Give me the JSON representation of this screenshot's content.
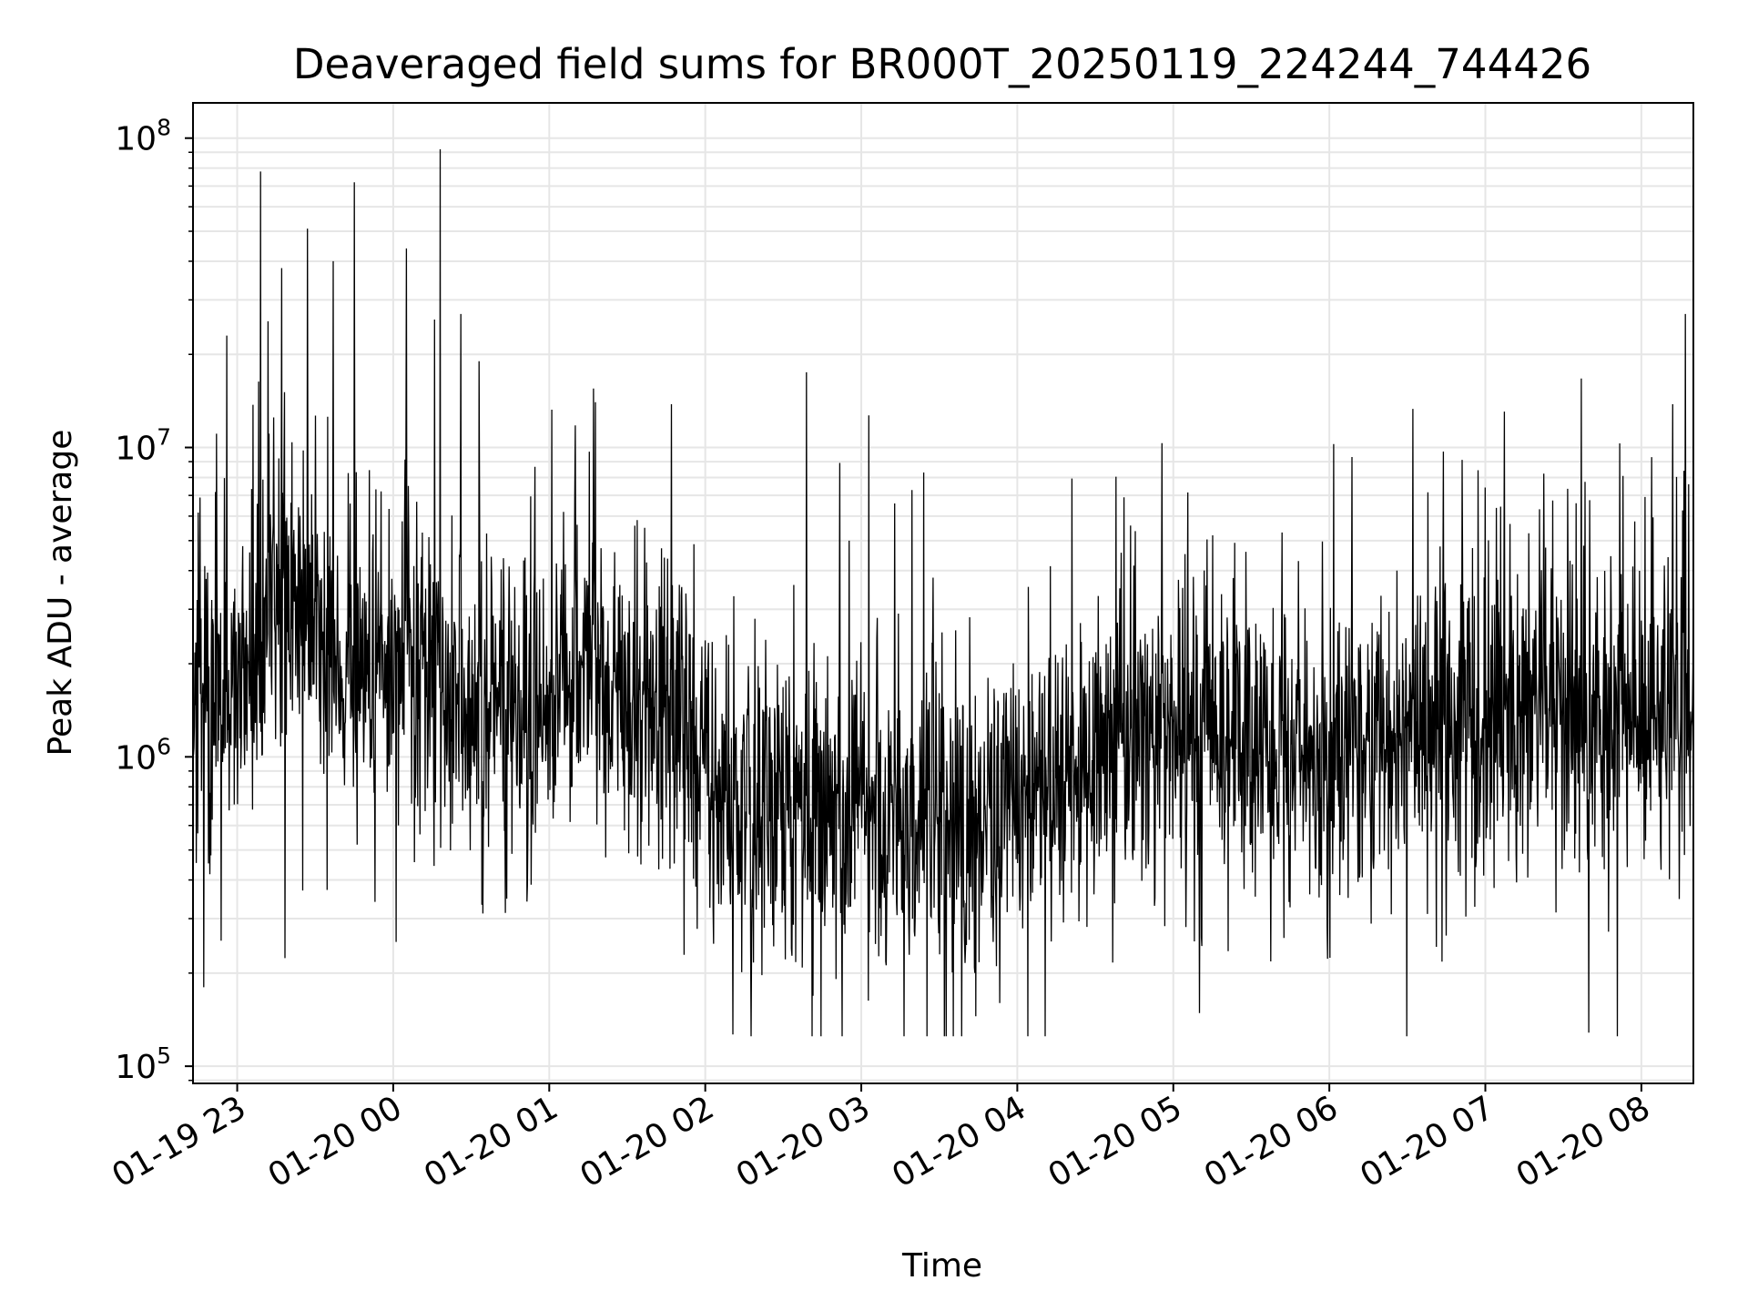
{
  "chart_data": {
    "type": "line",
    "title": "Deaveraged field sums for BR000T_20250119_224244_744426",
    "xlabel": "Time",
    "ylabel": "Peak ADU - average",
    "yscale": "log",
    "ylim": [
      88000,
      130000000
    ],
    "xlim": [
      "2025-01-19 22:43",
      "2025-01-20 08:20"
    ],
    "grid": true,
    "line_color": "#000000",
    "grid_color": "#e6e6e6",
    "x_ticks": [
      {
        "label": "01-19 23",
        "time": "2025-01-19 23:00"
      },
      {
        "label": "01-20 00",
        "time": "2025-01-20 00:00"
      },
      {
        "label": "01-20 01",
        "time": "2025-01-20 01:00"
      },
      {
        "label": "01-20 02",
        "time": "2025-01-20 02:00"
      },
      {
        "label": "01-20 03",
        "time": "2025-01-20 03:00"
      },
      {
        "label": "01-20 04",
        "time": "2025-01-20 04:00"
      },
      {
        "label": "01-20 05",
        "time": "2025-01-20 05:00"
      },
      {
        "label": "01-20 06",
        "time": "2025-01-20 06:00"
      },
      {
        "label": "01-20 07",
        "time": "2025-01-20 07:00"
      },
      {
        "label": "01-20 08",
        "time": "2025-01-20 08:00"
      }
    ],
    "y_ticks": [
      {
        "base": "10",
        "exp": "5",
        "value": 100000
      },
      {
        "base": "10",
        "exp": "6",
        "value": 1000000
      },
      {
        "base": "10",
        "exp": "7",
        "value": 10000000
      },
      {
        "base": "10",
        "exp": "8",
        "value": 100000000
      }
    ],
    "series": [
      {
        "x": [
          "2025-01-19 22:43",
          "2025-01-19 22:52",
          "2025-01-19 23:00",
          "2025-01-19 23:07",
          "2025-01-19 23:15",
          "2025-01-19 23:22",
          "2025-01-19 23:30",
          "2025-01-19 23:37",
          "2025-01-19 23:45",
          "2025-01-19 23:52",
          "2025-01-20 00:00",
          "2025-01-20 00:07",
          "2025-01-20 00:15",
          "2025-01-20 00:22",
          "2025-01-20 00:30",
          "2025-01-20 00:37",
          "2025-01-20 00:45",
          "2025-01-20 00:52",
          "2025-01-20 01:00",
          "2025-01-20 01:07",
          "2025-01-20 01:15",
          "2025-01-20 01:22",
          "2025-01-20 01:30",
          "2025-01-20 01:37",
          "2025-01-20 01:45",
          "2025-01-20 01:52",
          "2025-01-20 02:00",
          "2025-01-20 02:07",
          "2025-01-20 02:15",
          "2025-01-20 02:22",
          "2025-01-20 02:30",
          "2025-01-20 02:37",
          "2025-01-20 02:45",
          "2025-01-20 02:52",
          "2025-01-20 03:00",
          "2025-01-20 03:07",
          "2025-01-20 03:15",
          "2025-01-20 03:22",
          "2025-01-20 03:30",
          "2025-01-20 03:37",
          "2025-01-20 03:45",
          "2025-01-20 03:52",
          "2025-01-20 04:00",
          "2025-01-20 04:07",
          "2025-01-20 04:15",
          "2025-01-20 04:22",
          "2025-01-20 04:30",
          "2025-01-20 04:37",
          "2025-01-20 04:45",
          "2025-01-20 04:52",
          "2025-01-20 05:00",
          "2025-01-20 05:07",
          "2025-01-20 05:15",
          "2025-01-20 05:22",
          "2025-01-20 05:30",
          "2025-01-20 05:37",
          "2025-01-20 05:45",
          "2025-01-20 05:52",
          "2025-01-20 06:00",
          "2025-01-20 06:07",
          "2025-01-20 06:15",
          "2025-01-20 06:22",
          "2025-01-20 06:30",
          "2025-01-20 06:37",
          "2025-01-20 06:45",
          "2025-01-20 06:52",
          "2025-01-20 07:00",
          "2025-01-20 07:07",
          "2025-01-20 07:15",
          "2025-01-20 07:22",
          "2025-01-20 07:30",
          "2025-01-20 07:37",
          "2025-01-20 07:45",
          "2025-01-20 07:52",
          "2025-01-20 08:00",
          "2025-01-20 08:07",
          "2025-01-20 08:14",
          "2025-01-20 08:20"
        ],
        "baseline": [
          1500000,
          1600000,
          1700000,
          2200000,
          3000000,
          3200000,
          2500000,
          1800000,
          1900000,
          2200000,
          2300000,
          2200000,
          1800000,
          1500000,
          1300000,
          1500000,
          1400000,
          1200000,
          1600000,
          1700000,
          1700000,
          1600000,
          1500000,
          1400000,
          1400000,
          1300000,
          1000000,
          700000,
          600000,
          650000,
          800000,
          700000,
          650000,
          600000,
          800000,
          650000,
          550000,
          600000,
          650000,
          550000,
          520000,
          550000,
          750000,
          800000,
          900000,
          1000000,
          1000000,
          1050000,
          1100000,
          1150000,
          1150000,
          1150000,
          1200000,
          1150000,
          1100000,
          1100000,
          1050000,
          1000000,
          1000000,
          1050000,
          1100000,
          1150000,
          1150000,
          1200000,
          1250000,
          1300000,
          1350000,
          1400000,
          1450000,
          1450000,
          1400000,
          1350000,
          1300000,
          1350000,
          1500000,
          1650000,
          1700000,
          1750000
        ],
        "peaks": [
          {
            "time": "2025-01-19 22:56",
            "value": 23000000
          },
          {
            "time": "2025-01-19 23:09",
            "value": 78000000
          },
          {
            "time": "2025-01-19 23:17",
            "value": 38000000
          },
          {
            "time": "2025-01-19 23:27",
            "value": 51000000
          },
          {
            "time": "2025-01-19 23:37",
            "value": 40000000
          },
          {
            "time": "2025-01-19 23:45",
            "value": 72000000
          },
          {
            "time": "2025-01-20 00:05",
            "value": 44000000
          },
          {
            "time": "2025-01-20 00:18",
            "value": 92000000
          },
          {
            "time": "2025-01-20 00:26",
            "value": 27000000
          },
          {
            "time": "2025-01-20 00:33",
            "value": 19000000
          },
          {
            "time": "2025-01-20 01:17",
            "value": 15500000
          },
          {
            "time": "2025-01-20 01:47",
            "value": 13800000
          },
          {
            "time": "2025-01-20 02:39",
            "value": 17500000
          },
          {
            "time": "2025-01-20 03:03",
            "value": 12700000
          },
          {
            "time": "2025-01-20 03:24",
            "value": 8300000
          },
          {
            "time": "2025-01-20 04:41",
            "value": 6900000
          },
          {
            "time": "2025-01-20 05:28",
            "value": 4600000
          },
          {
            "time": "2025-01-20 06:26",
            "value": 4000000
          },
          {
            "time": "2025-01-20 08:12",
            "value": 13800000
          },
          {
            "time": "2025-01-20 08:17",
            "value": 27000000
          }
        ]
      }
    ]
  }
}
